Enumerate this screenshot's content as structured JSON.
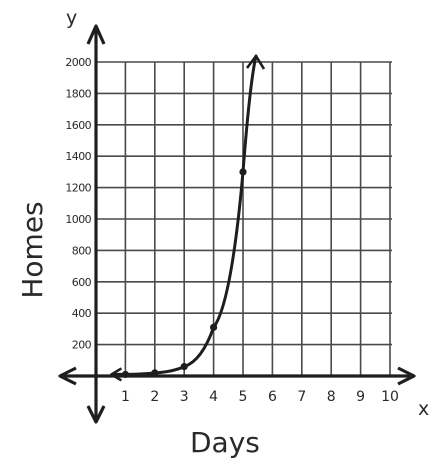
{
  "chart_data": {
    "type": "line",
    "title": "",
    "xlabel": "Days",
    "ylabel": "Homes",
    "x_axis_letter": "x",
    "y_axis_letter": "y",
    "xlim": [
      0,
      10
    ],
    "ylim": [
      0,
      2000
    ],
    "x_ticks": [
      "1",
      "2",
      "3",
      "4",
      "5",
      "6",
      "7",
      "8",
      "9",
      "10"
    ],
    "y_ticks": [
      "200",
      "400",
      "600",
      "800",
      "1000",
      "1200",
      "1400",
      "1600",
      "1800",
      "2000"
    ],
    "grid": true,
    "series": [
      {
        "x": [
          1,
          2,
          3,
          4,
          5
        ],
        "y": [
          10,
          20,
          60,
          310,
          1300
        ]
      }
    ],
    "colors": {
      "grid": "#4a4a4a",
      "axis": "#1e1e1e",
      "curve": "#1e1e1e",
      "ink": "#2a2a2a"
    }
  }
}
